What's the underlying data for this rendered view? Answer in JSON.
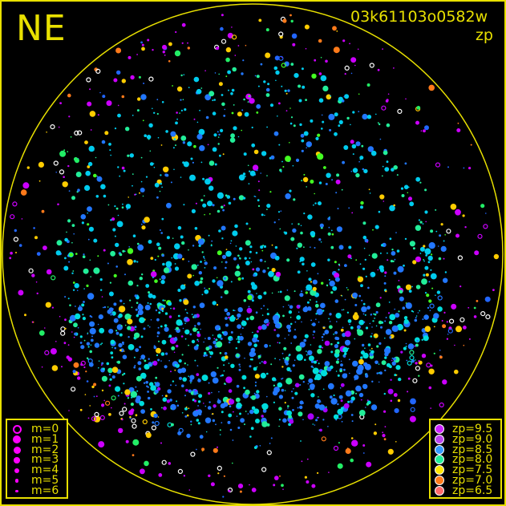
{
  "header": {
    "direction": "NE",
    "frame_id": "03k61103o0582w",
    "mode": "zp"
  },
  "chart_data": {
    "type": "scatter",
    "title": "",
    "description_marks": "all-sky star positions, dot size = magnitude, color = zero point",
    "magnitude_legend": [
      {
        "label": "m=0",
        "symbol": "ring"
      },
      {
        "label": "m=1",
        "size": 5
      },
      {
        "label": "m=2",
        "size": 4.5
      },
      {
        "label": "m=3",
        "size": 3.8
      },
      {
        "label": "m=4",
        "size": 3
      },
      {
        "label": "m=5",
        "size": 2.4
      },
      {
        "label": "m=6",
        "size": 1.6
      }
    ],
    "zp_legend": [
      {
        "label": "zp=9.5",
        "value": 9.5,
        "color": "#cc22ff"
      },
      {
        "label": "zp=9.0",
        "value": 9.0,
        "color": "#bb44ee"
      },
      {
        "label": "zp=8.5",
        "value": 8.5,
        "color": "#3399ff"
      },
      {
        "label": "zp=8.0",
        "value": 8.0,
        "color": "#22ee99"
      },
      {
        "label": "zp=7.5",
        "value": 7.5,
        "color": "#ffe600"
      },
      {
        "label": "zp=7.0",
        "value": 7.0,
        "color": "#ff7a1a"
      },
      {
        "label": "zp=6.5",
        "value": 6.5,
        "color": "#ff6a6a"
      }
    ],
    "legend_placement": [
      "bottom-left",
      "bottom-right"
    ]
  },
  "colors": {
    "frame": "#e8e000",
    "background": "#000000"
  }
}
